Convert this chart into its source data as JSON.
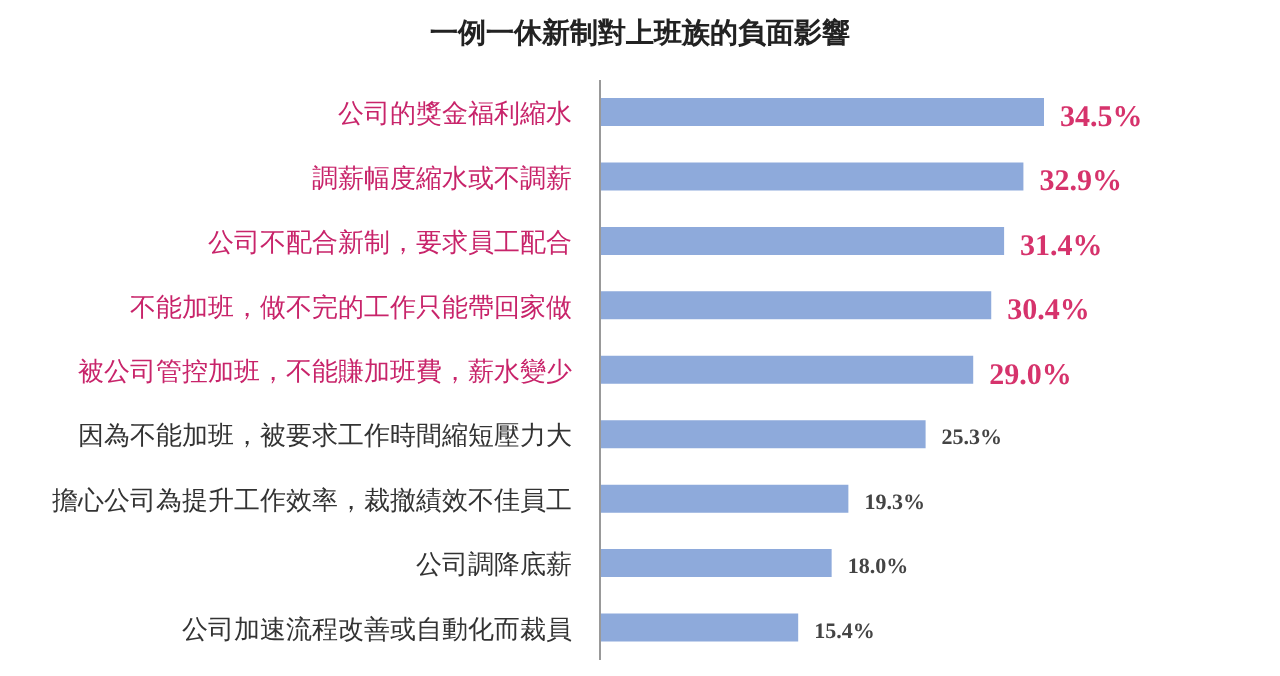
{
  "chart_data": {
    "type": "bar",
    "orientation": "horizontal",
    "title": "一例一休新制對上班族的負面影響",
    "categories": [
      "公司的獎金福利縮水",
      "調薪幅度縮水或不調薪",
      "公司不配合新制，要求員工配合",
      "不能加班，做不完的工作只能帶回家做",
      "被公司管控加班，不能賺加班費，薪水變少",
      "因為不能加班，被要求工作時間縮短壓力大",
      "擔心公司為提升工作效率，裁撤績效不佳員工",
      "公司調降底薪",
      "公司加速流程改善或自動化而裁員"
    ],
    "series": [
      {
        "color": "#8eaadb",
        "values": [
          34.5,
          32.9,
          31.4,
          30.4,
          29.0,
          25.3,
          19.3,
          18.0,
          15.4
        ],
        "value_labels": [
          "34.5%",
          "32.9%",
          "31.4%",
          "30.4%",
          "29.0%",
          "25.3%",
          "19.3%",
          "18.0%",
          "15.4%"
        ]
      }
    ],
    "grid": false,
    "legend": false,
    "tick_labels": "y"
  }
}
